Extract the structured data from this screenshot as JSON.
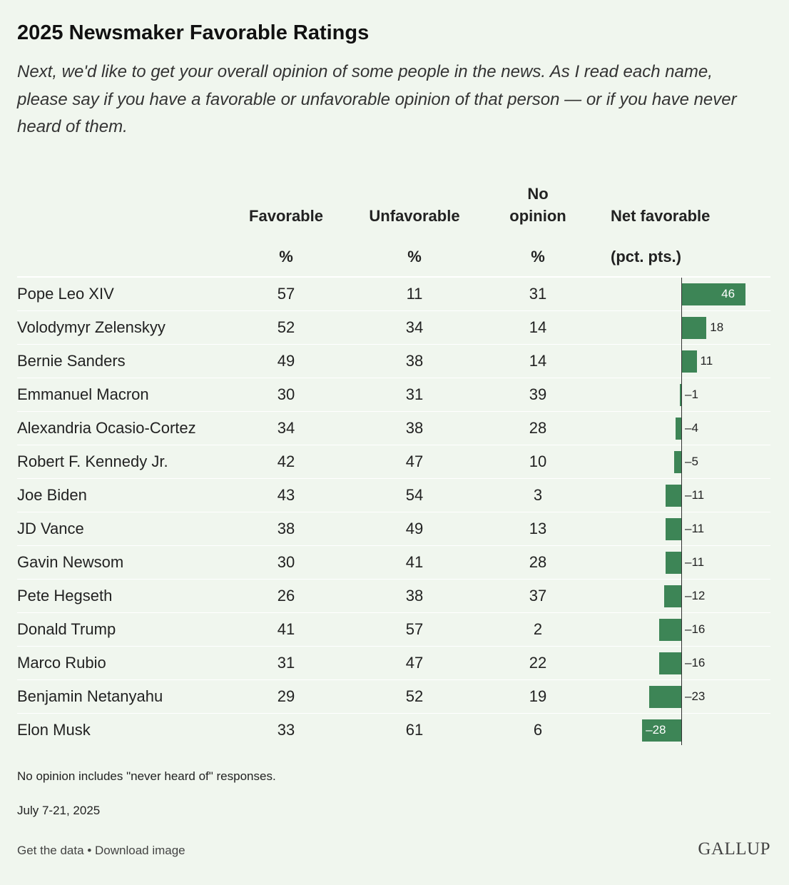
{
  "title": "2025 Newsmaker Favorable Ratings",
  "subtitle": "Next, we'd like to get your overall opinion of some people in the news. As I read each name, please say if you have a favorable or unfavorable opinion of that person — or if you have never heard of them.",
  "columns": {
    "favorable": "Favorable",
    "unfavorable": "Unfavorable",
    "no_opinion_line1": "No",
    "no_opinion_line2": "opinion",
    "net": "Net favorable",
    "pct": "%",
    "pct_pts": "(pct. pts.)"
  },
  "chart_data": {
    "type": "table",
    "bar_color": "#3d8556",
    "rows": [
      {
        "name": "Pope Leo XIV",
        "favorable": "57",
        "unfavorable": "11",
        "no_opinion": "31",
        "net": 46,
        "net_label": "46"
      },
      {
        "name": "Volodymyr Zelenskyy",
        "favorable": "52",
        "unfavorable": "34",
        "no_opinion": "14",
        "net": 18,
        "net_label": "18"
      },
      {
        "name": "Bernie Sanders",
        "favorable": "49",
        "unfavorable": "38",
        "no_opinion": "14",
        "net": 11,
        "net_label": "11"
      },
      {
        "name": "Emmanuel Macron",
        "favorable": "30",
        "unfavorable": "31",
        "no_opinion": "39",
        "net": -1,
        "net_label": "–1"
      },
      {
        "name": "Alexandria Ocasio-Cortez",
        "favorable": "34",
        "unfavorable": "38",
        "no_opinion": "28",
        "net": -4,
        "net_label": "–4"
      },
      {
        "name": "Robert F. Kennedy Jr.",
        "favorable": "42",
        "unfavorable": "47",
        "no_opinion": "10",
        "net": -5,
        "net_label": "–5"
      },
      {
        "name": "Joe Biden",
        "favorable": "43",
        "unfavorable": "54",
        "no_opinion": "3",
        "net": -11,
        "net_label": "–11"
      },
      {
        "name": "JD Vance",
        "favorable": "38",
        "unfavorable": "49",
        "no_opinion": "13",
        "net": -11,
        "net_label": "–11"
      },
      {
        "name": "Gavin Newsom",
        "favorable": "30",
        "unfavorable": "41",
        "no_opinion": "28",
        "net": -11,
        "net_label": "–11"
      },
      {
        "name": "Pete Hegseth",
        "favorable": "26",
        "unfavorable": "38",
        "no_opinion": "37",
        "net": -12,
        "net_label": "–12"
      },
      {
        "name": "Donald Trump",
        "favorable": "41",
        "unfavorable": "57",
        "no_opinion": "2",
        "net": -16,
        "net_label": "–16"
      },
      {
        "name": "Marco Rubio",
        "favorable": "31",
        "unfavorable": "47",
        "no_opinion": "22",
        "net": -16,
        "net_label": "–16"
      },
      {
        "name": "Benjamin Netanyahu",
        "favorable": "29",
        "unfavorable": "52",
        "no_opinion": "19",
        "net": -23,
        "net_label": "–23"
      },
      {
        "name": "Elon Musk",
        "favorable": "33",
        "unfavorable": "61",
        "no_opinion": "6",
        "net": -28,
        "net_label": "–28"
      }
    ]
  },
  "footnote": "No opinion includes \"never heard of\" responses.",
  "date": "July 7-21, 2025",
  "links": {
    "get_data": "Get the data",
    "separator": "•",
    "download": "Download image"
  },
  "logo": "GALLUP"
}
